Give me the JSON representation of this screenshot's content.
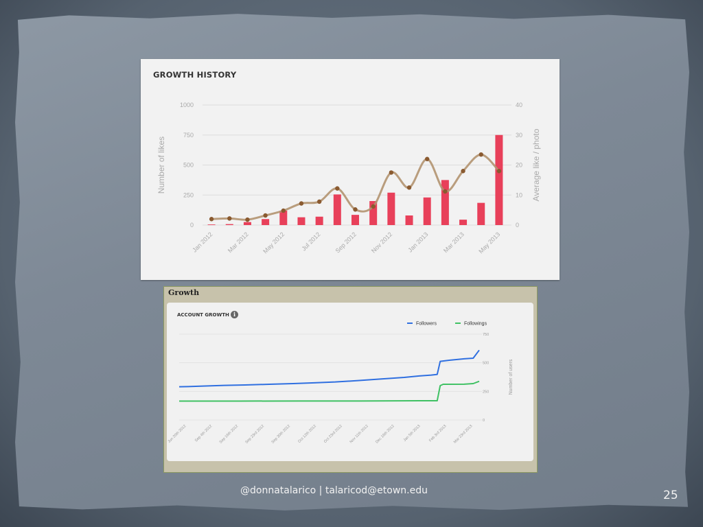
{
  "footer": {
    "credit": "@donnatalarico | talaricod@etown.edu",
    "page_number": "25"
  },
  "chart_data": [
    {
      "type": "bar",
      "title": "GROWTH HISTORY",
      "ylabel": "Number of likes",
      "y2label": "Average like / photo",
      "ylim": [
        0,
        1000
      ],
      "y2lim": [
        0,
        40
      ],
      "yticks": [
        "1000",
        "750",
        "500",
        "250",
        "0"
      ],
      "y2ticks": [
        "40",
        "30",
        "20",
        "10",
        "0"
      ],
      "xtick_labels": [
        "Jan 2012",
        "Mar 2012",
        "May 2012",
        "Jul 2012",
        "Sep 2012",
        "Nov 2012",
        "Jan 2013",
        "Mar 2013",
        "May 2013"
      ],
      "series": [
        {
          "kind": "bar",
          "axis": "left",
          "color": "#e8405a",
          "values": [
            5,
            8,
            25,
            50,
            120,
            65,
            70,
            255,
            85,
            200,
            270,
            80,
            230,
            375,
            45,
            185,
            750
          ]
        },
        {
          "kind": "line",
          "axis": "right",
          "color": "#b39470",
          "marker_color": "#8a5a30",
          "values": [
            2,
            2.2,
            1.8,
            3.2,
            4.8,
            7.2,
            7.8,
            12.2,
            5.2,
            6.2,
            17.5,
            12.5,
            22,
            11.2,
            18,
            23.5,
            18
          ]
        }
      ],
      "grid": true,
      "legend": "none"
    },
    {
      "type": "line",
      "panel_heading": "Growth",
      "title": "ACCOUNT GROWTH",
      "ylabel": "Number of users",
      "ylim": [
        0,
        750
      ],
      "yticks": [
        "750",
        "500",
        "250",
        "0"
      ],
      "xtick_labels": [
        "Jun 20th 2012",
        "Sep 4th 2012",
        "Sep 16th 2012",
        "Sep 23rd 2012",
        "Sep 30th 2012",
        "Oct 12th 2012",
        "Oct 23rd 2012",
        "Nov 11th 2012",
        "Dec 16th 2012",
        "Jan 5th 2013",
        "Feb 3rd 2013",
        "Mar 23rd 2013"
      ],
      "legend": "top-right",
      "series": [
        {
          "name": "Followers",
          "color": "#2f6fe0",
          "x": [
            0,
            0.03,
            0.08,
            0.15,
            0.22,
            0.3,
            0.38,
            0.45,
            0.52,
            0.6,
            0.67,
            0.75,
            0.8,
            0.84,
            0.86,
            0.87,
            0.9,
            0.95,
            0.98,
            1.0
          ],
          "values": [
            290,
            292,
            296,
            302,
            306,
            312,
            318,
            325,
            332,
            345,
            358,
            372,
            385,
            392,
            398,
            512,
            522,
            535,
            540,
            610
          ]
        },
        {
          "name": "Followings",
          "color": "#3fc163",
          "x": [
            0,
            0.2,
            0.4,
            0.6,
            0.8,
            0.86,
            0.87,
            0.88,
            0.95,
            0.98,
            1.0
          ],
          "values": [
            165,
            165,
            166,
            166,
            168,
            168,
            300,
            312,
            313,
            318,
            338
          ]
        }
      ]
    }
  ]
}
